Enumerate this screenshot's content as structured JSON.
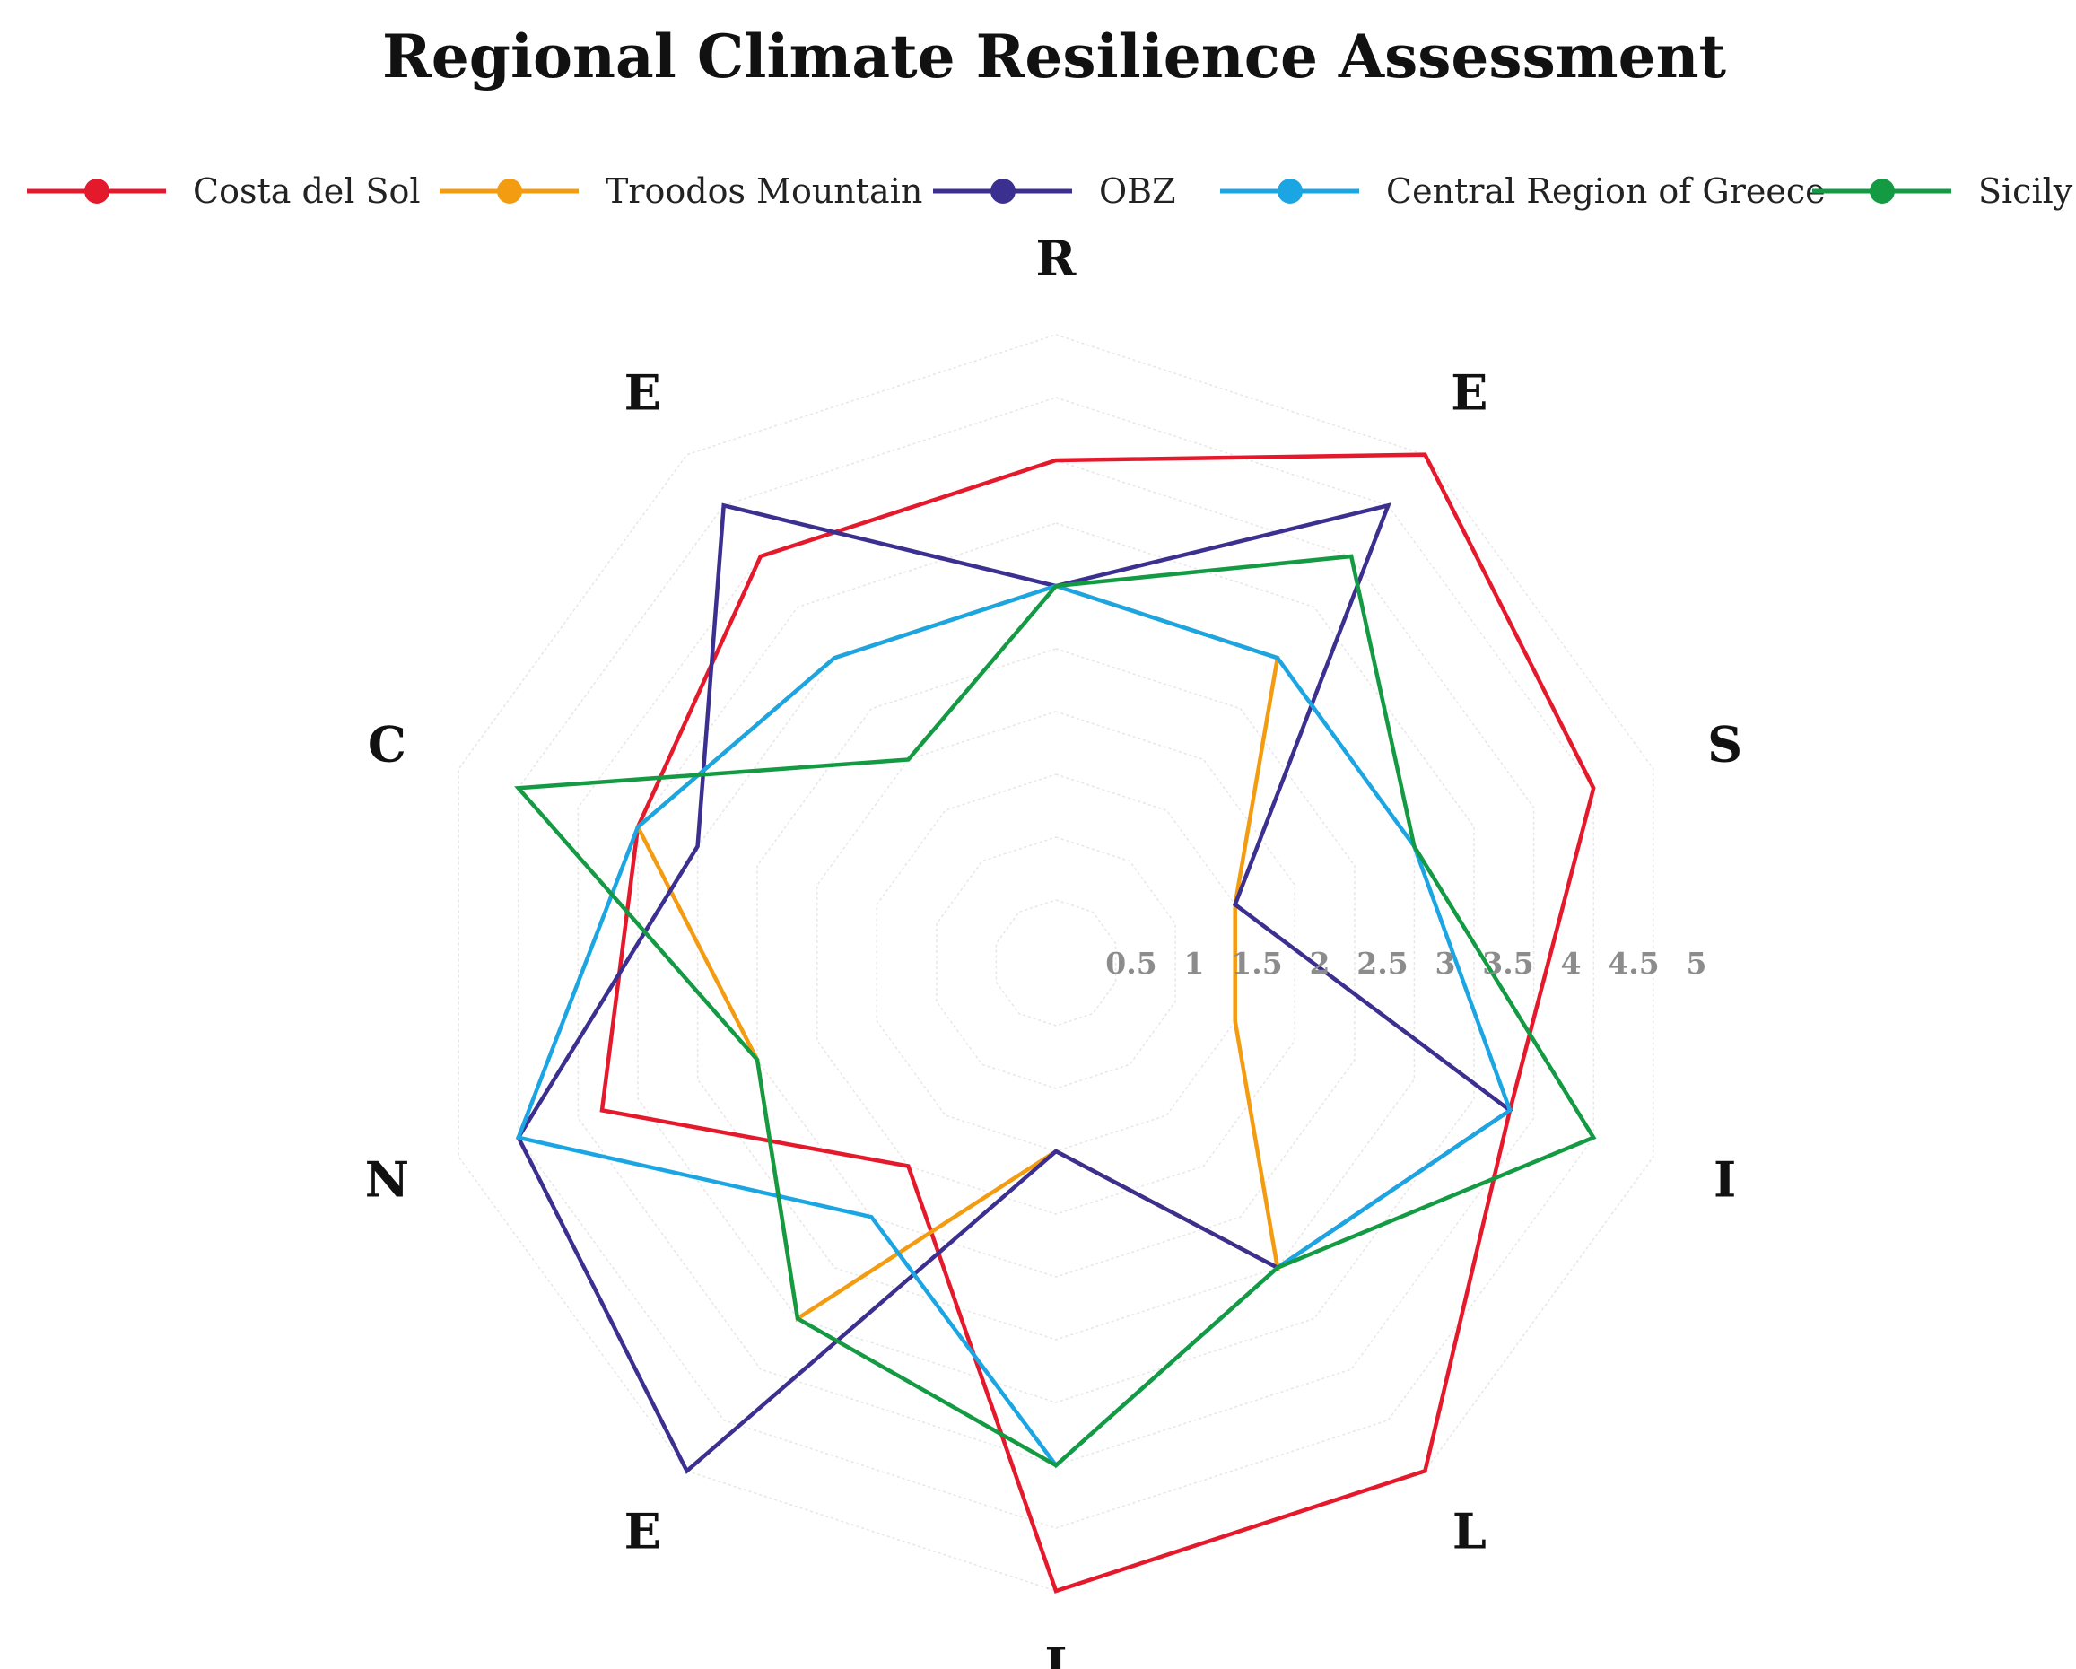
{
  "chart_data": {
    "type": "radar",
    "title": "Regional Climate Resilience Assessment",
    "axes": [
      "R",
      "E",
      "S",
      "I",
      "L",
      "I",
      "E",
      "N",
      "C",
      "E"
    ],
    "rlim": [
      0,
      5
    ],
    "rticks": [
      "0.5",
      "1",
      "1.5",
      "2",
      "2.5",
      "3",
      "3.5",
      "4",
      "4.5",
      "5"
    ],
    "grid": true,
    "legend_position": "top",
    "series": [
      {
        "name": "Costa del Sol",
        "color": "#e41a2c",
        "values": [
          4,
          5,
          4.5,
          3.8,
          5,
          5,
          2,
          3.8,
          3.5,
          4
        ]
      },
      {
        "name": "Troodos Mountain",
        "color": "#f39c12",
        "values": [
          3,
          3,
          1.5,
          1.5,
          3,
          1.5,
          3.5,
          2.5,
          3.5,
          3
        ]
      },
      {
        "name": "OBZ",
        "color": "#3b2f8f",
        "values": [
          3,
          4.5,
          1.5,
          3.8,
          3,
          1.5,
          5,
          4.5,
          3,
          4.5
        ]
      },
      {
        "name": "Central Region of Greece",
        "color": "#1ba6e3",
        "values": [
          3,
          3,
          3,
          3.8,
          3,
          4,
          2.5,
          4.5,
          3.5,
          3
        ]
      },
      {
        "name": "Sicily",
        "color": "#139a43",
        "values": [
          3,
          4,
          3,
          4.5,
          3,
          4,
          3.5,
          2.5,
          4.5,
          2
        ]
      }
    ]
  }
}
